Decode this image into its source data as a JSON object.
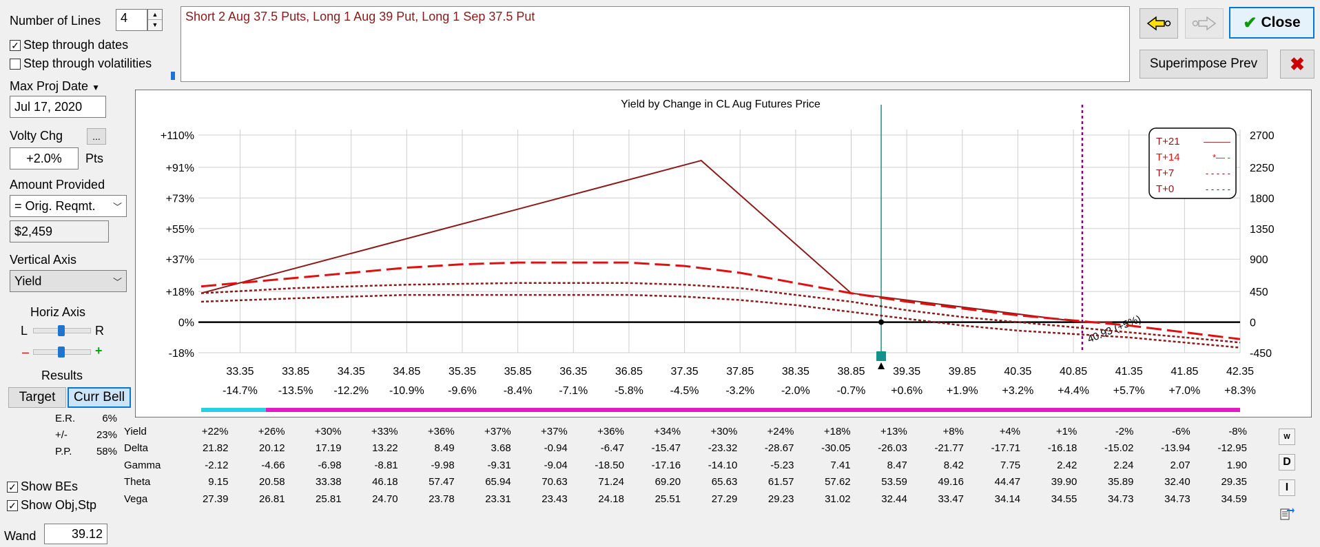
{
  "controls": {
    "num_lines_label": "Number of Lines",
    "num_lines_value": "4",
    "step_dates_label": "Step through dates",
    "step_dates_checked": true,
    "step_vols_label": "Step through volatilities",
    "step_vols_checked": false,
    "max_proj_date_label": "Max Proj Date",
    "max_proj_date_value": "Jul 17, 2020",
    "volty_chg_label": "Volty Chg",
    "volty_chg_button": "...",
    "volty_chg_value": "+2.0%",
    "volty_chg_unit": "Pts",
    "amount_provided_label": "Amount Provided",
    "amount_provided_value": "= Orig. Reqmt.",
    "amount_value": "$2,459",
    "vertical_axis_label": "Vertical Axis",
    "vertical_axis_value": "Yield",
    "horiz_axis_label": "Horiz Axis",
    "horiz_l": "L",
    "horiz_r": "R",
    "minus": "–",
    "plus": "+",
    "results_label": "Results",
    "target_label": "Target",
    "curr_bell_label": "Curr Bell",
    "results_rows": [
      {
        "label": "E.R.",
        "value": "6%"
      },
      {
        "label": "+/-",
        "value": "23%"
      },
      {
        "label": "P.P.",
        "value": "58%"
      }
    ],
    "show_bes_label": "Show BEs",
    "show_bes_checked": true,
    "show_obj_label": "Show Obj,Stp",
    "show_obj_checked": true,
    "wand_label": "Wand",
    "wand_value": "39.12"
  },
  "description": "Short 2 Aug 37.5 Puts, Long 1 Aug 39 Put, Long 1 Sep 37.5 Put",
  "toolbar": {
    "close_label": "Close",
    "superimpose_label": "Superimpose Prev",
    "back_icon": "back-arrow-icon",
    "forward_icon": "forward-arrow-icon",
    "delete_icon": "red-x-icon"
  },
  "chart_data": {
    "type": "line",
    "title": "Yield by Change in CL Aug Futures Price",
    "x_ticks": [
      "33.35",
      "33.85",
      "34.35",
      "34.85",
      "35.35",
      "35.85",
      "36.35",
      "36.85",
      "37.35",
      "37.85",
      "38.35",
      "38.85",
      "39.35",
      "39.85",
      "40.35",
      "40.85",
      "41.35",
      "41.85",
      "42.35"
    ],
    "x_pct_ticks": [
      "-14.7%",
      "-13.5%",
      "-12.2%",
      "-10.9%",
      "-9.6%",
      "-8.4%",
      "-7.1%",
      "-5.8%",
      "-4.5%",
      "-3.2%",
      "-2.0%",
      "-0.7%",
      "+0.6%",
      "+1.9%",
      "+3.2%",
      "+4.4%",
      "+5.7%",
      "+7.0%",
      "+8.3%"
    ],
    "y_left_ticks": [
      "+110%",
      "+91%",
      "+73%",
      "+55%",
      "+37%",
      "+18%",
      "0%",
      "-18%"
    ],
    "y_right_ticks": [
      "2700",
      "2250",
      "1800",
      "1350",
      "900",
      "450",
      "0",
      "-450"
    ],
    "xlim": [
      33.0,
      42.35
    ],
    "ylim": [
      -18,
      110
    ],
    "current_price": 39.12,
    "objective_price": 40.93,
    "objective_label": "40.93 (+5%)",
    "series": [
      {
        "name": "T+21",
        "legend_marker": "———",
        "style": "solid",
        "color": "#8b1a1a",
        "x": [
          33.0,
          37.5,
          38.85,
          40.93,
          41.2
        ],
        "y": [
          17,
          95,
          17,
          0,
          0
        ]
      },
      {
        "name": "T+14",
        "legend_marker": "*— -",
        "style": "longdash",
        "color": "#e01010",
        "x": [
          33.0,
          33.85,
          34.85,
          35.35,
          35.85,
          36.35,
          36.85,
          37.35,
          37.85,
          38.35,
          38.85,
          39.35,
          39.85,
          40.35,
          40.85,
          41.35,
          41.85,
          42.35
        ],
        "y": [
          21,
          26,
          32,
          34,
          35,
          35,
          35,
          33,
          29,
          23,
          17,
          12,
          8,
          4,
          1,
          -2,
          -6,
          -10
        ]
      },
      {
        "name": "T+7",
        "legend_marker": "- - - - -",
        "style": "dotted",
        "color": "#8b1a1a",
        "x": [
          33.0,
          33.85,
          34.85,
          35.85,
          36.85,
          37.35,
          37.85,
          38.35,
          38.85,
          39.35,
          39.85,
          40.35,
          40.85,
          41.35,
          41.85,
          42.35
        ],
        "y": [
          17,
          20,
          22,
          23,
          23,
          22,
          20,
          16,
          12,
          7,
          3,
          0,
          -3,
          -6,
          -9,
          -12
        ]
      },
      {
        "name": "T+0",
        "legend_marker": "- - - - -",
        "style": "dotted",
        "color": "#8b1a1a",
        "x": [
          33.0,
          33.85,
          34.85,
          35.85,
          36.85,
          37.35,
          37.85,
          38.35,
          38.85,
          39.35,
          39.85,
          40.35,
          40.85,
          41.35,
          41.85,
          42.35
        ],
        "y": [
          12,
          14,
          16,
          16,
          16,
          15,
          13,
          10,
          6,
          2,
          -2,
          -5,
          -7,
          -9,
          -12,
          -15
        ]
      }
    ]
  },
  "greeks": {
    "rows": [
      {
        "label": "Yield",
        "values": [
          "+22%",
          "+26%",
          "+30%",
          "+33%",
          "+36%",
          "+37%",
          "+37%",
          "+36%",
          "+34%",
          "+30%",
          "+24%",
          "+18%",
          "+13%",
          "+8%",
          "+4%",
          "+1%",
          "-2%",
          "-6%",
          "-8%"
        ]
      },
      {
        "label": "Delta",
        "values": [
          "21.82",
          "20.12",
          "17.19",
          "13.22",
          "8.49",
          "3.68",
          "-0.94",
          "-6.47",
          "-15.47",
          "-23.32",
          "-28.67",
          "-30.05",
          "-26.03",
          "-21.77",
          "-17.71",
          "-16.18",
          "-15.02",
          "-13.94",
          "-12.95"
        ]
      },
      {
        "label": "Gamma",
        "values": [
          "-2.12",
          "-4.66",
          "-6.98",
          "-8.81",
          "-9.98",
          "-9.31",
          "-9.04",
          "-18.50",
          "-17.16",
          "-14.10",
          "-5.23",
          "7.41",
          "8.47",
          "8.42",
          "7.75",
          "2.42",
          "2.24",
          "2.07",
          "1.90"
        ]
      },
      {
        "label": "Theta",
        "values": [
          "9.15",
          "20.58",
          "33.38",
          "46.18",
          "57.47",
          "65.94",
          "70.63",
          "71.24",
          "69.20",
          "65.63",
          "61.57",
          "57.62",
          "53.59",
          "49.16",
          "44.47",
          "39.90",
          "35.89",
          "32.40",
          "29.35"
        ]
      },
      {
        "label": "Vega",
        "values": [
          "27.39",
          "26.81",
          "25.81",
          "24.70",
          "23.78",
          "23.31",
          "23.43",
          "24.18",
          "25.51",
          "27.29",
          "29.23",
          "31.02",
          "32.44",
          "33.47",
          "34.14",
          "34.55",
          "34.73",
          "34.73",
          "34.59"
        ]
      }
    ],
    "side_buttons": [
      "W",
      "D",
      "I"
    ]
  }
}
